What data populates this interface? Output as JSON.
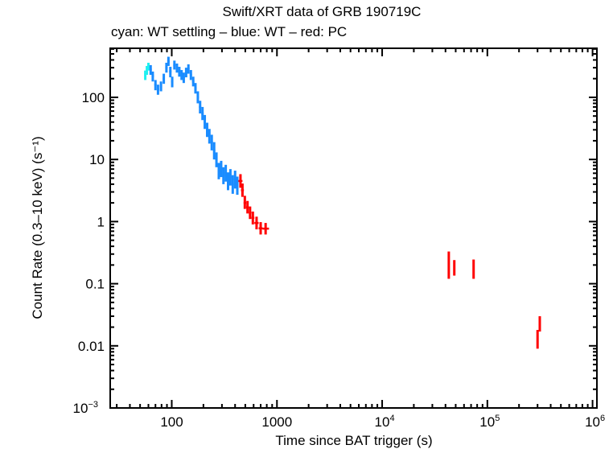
{
  "chart_data": {
    "type": "scatter",
    "title": "Swift/XRT data of GRB 190719C",
    "subtitle": "cyan: WT settling – blue: WT – red: PC",
    "xlabel": "Time since BAT trigger (s)",
    "ylabel": "Count Rate (0.3–10 keV) (s⁻¹)",
    "xscale": "log",
    "yscale": "log",
    "xlim": [
      26,
      1100000
    ],
    "ylim": [
      0.001,
      616
    ],
    "grid": false,
    "legend": "none (color key given in subtitle)",
    "x_ticks": [
      {
        "value": 100,
        "label": "100"
      },
      {
        "value": 1000,
        "label": "1000"
      },
      {
        "value": 10000,
        "label": "10",
        "exp": "4"
      },
      {
        "value": 100000,
        "label": "10",
        "exp": "5"
      },
      {
        "value": 1000000,
        "label": "10",
        "exp": "6"
      }
    ],
    "y_ticks": [
      {
        "value": 100,
        "label": "100"
      },
      {
        "value": 10,
        "label": "10"
      },
      {
        "value": 1,
        "label": "1"
      },
      {
        "value": 0.1,
        "label": "0.1"
      },
      {
        "value": 0.01,
        "label": "0.01"
      },
      {
        "value": 0.001,
        "label": "10",
        "exp": "−3"
      }
    ],
    "series": [
      {
        "name": "WT settling",
        "color": "#1ff0f0",
        "points": [
          {
            "t": 56,
            "t_lo": 55.5,
            "t_hi": 57,
            "rate": 230,
            "lo": 190,
            "hi": 270
          },
          {
            "t": 58,
            "t_lo": 57,
            "t_hi": 59,
            "rate": 270,
            "lo": 230,
            "hi": 320
          },
          {
            "t": 60,
            "t_lo": 59,
            "t_hi": 61,
            "rate": 310,
            "lo": 270,
            "hi": 360
          }
        ]
      },
      {
        "name": "WT",
        "color": "#1a8cff",
        "points": [
          {
            "t": 63,
            "rate": 280,
            "lo": 230,
            "hi": 330
          },
          {
            "t": 66,
            "rate": 220,
            "lo": 180,
            "hi": 260
          },
          {
            "t": 70,
            "rate": 160,
            "lo": 130,
            "hi": 190
          },
          {
            "t": 74,
            "rate": 135,
            "lo": 110,
            "hi": 160
          },
          {
            "t": 79,
            "rate": 150,
            "lo": 125,
            "hi": 180
          },
          {
            "t": 84,
            "rate": 200,
            "lo": 165,
            "hi": 240
          },
          {
            "t": 89,
            "rate": 300,
            "lo": 250,
            "hi": 360
          },
          {
            "t": 93,
            "rate": 380,
            "lo": 320,
            "hi": 450
          },
          {
            "t": 97,
            "rate": 260,
            "lo": 210,
            "hi": 310
          },
          {
            "t": 101,
            "rate": 180,
            "lo": 145,
            "hi": 215
          },
          {
            "t": 106,
            "rate": 330,
            "lo": 280,
            "hi": 390
          },
          {
            "t": 112,
            "rate": 300,
            "lo": 250,
            "hi": 350
          },
          {
            "t": 118,
            "rate": 260,
            "lo": 215,
            "hi": 310
          },
          {
            "t": 124,
            "rate": 230,
            "lo": 190,
            "hi": 275
          },
          {
            "t": 130,
            "rate": 210,
            "lo": 170,
            "hi": 250
          },
          {
            "t": 137,
            "rate": 250,
            "lo": 210,
            "hi": 300
          },
          {
            "t": 144,
            "rate": 290,
            "lo": 240,
            "hi": 340
          },
          {
            "t": 152,
            "rate": 230,
            "lo": 190,
            "hi": 275
          },
          {
            "t": 160,
            "rate": 180,
            "lo": 150,
            "hi": 215
          },
          {
            "t": 168,
            "rate": 140,
            "lo": 115,
            "hi": 170
          },
          {
            "t": 177,
            "rate": 100,
            "lo": 80,
            "hi": 125
          },
          {
            "t": 186,
            "rate": 70,
            "lo": 55,
            "hi": 88
          },
          {
            "t": 196,
            "rate": 55,
            "lo": 43,
            "hi": 70
          },
          {
            "t": 206,
            "rate": 40,
            "lo": 31,
            "hi": 52
          },
          {
            "t": 217,
            "rate": 30,
            "lo": 23,
            "hi": 39
          },
          {
            "t": 228,
            "rate": 24,
            "lo": 18,
            "hi": 31
          },
          {
            "t": 240,
            "rate": 19,
            "lo": 14,
            "hi": 25
          },
          {
            "t": 253,
            "rate": 14,
            "lo": 10,
            "hi": 19
          },
          {
            "t": 266,
            "rate": 10,
            "lo": 7.5,
            "hi": 13
          },
          {
            "t": 280,
            "rate": 6.5,
            "lo": 4.8,
            "hi": 8.8
          },
          {
            "t": 295,
            "rate": 7.0,
            "lo": 5.2,
            "hi": 9.5
          },
          {
            "t": 310,
            "rate": 5.5,
            "lo": 4.0,
            "hi": 7.5
          },
          {
            "t": 326,
            "rate": 6.0,
            "lo": 4.4,
            "hi": 8.2
          },
          {
            "t": 343,
            "rate": 4.5,
            "lo": 3.2,
            "hi": 6.2
          },
          {
            "t": 361,
            "rate": 5.2,
            "lo": 3.8,
            "hi": 7.0
          },
          {
            "t": 380,
            "rate": 4.0,
            "lo": 2.8,
            "hi": 5.6
          },
          {
            "t": 400,
            "rate": 4.8,
            "lo": 3.4,
            "hi": 6.6
          },
          {
            "t": 420,
            "rate": 3.8,
            "lo": 2.7,
            "hi": 5.3
          }
        ]
      },
      {
        "name": "PC",
        "color": "#ff0000",
        "points": [
          {
            "t": 450,
            "t_lo": 430,
            "t_hi": 470,
            "rate": 4.5,
            "lo": 3.5,
            "hi": 5.8
          },
          {
            "t": 470,
            "t_lo": 455,
            "t_hi": 485,
            "rate": 3.2,
            "lo": 2.5,
            "hi": 4.1
          },
          {
            "t": 495,
            "t_lo": 482,
            "t_hi": 510,
            "rate": 2.0,
            "lo": 1.6,
            "hi": 2.6
          },
          {
            "t": 525,
            "t_lo": 510,
            "t_hi": 540,
            "rate": 1.7,
            "lo": 1.35,
            "hi": 2.15
          },
          {
            "t": 555,
            "t_lo": 540,
            "t_hi": 572,
            "rate": 1.4,
            "lo": 1.1,
            "hi": 1.75
          },
          {
            "t": 590,
            "t_lo": 572,
            "t_hi": 610,
            "rate": 1.15,
            "lo": 0.9,
            "hi": 1.45
          },
          {
            "t": 640,
            "t_lo": 610,
            "t_hi": 670,
            "rate": 0.95,
            "lo": 0.75,
            "hi": 1.2
          },
          {
            "t": 700,
            "t_lo": 670,
            "t_hi": 730,
            "rate": 0.78,
            "lo": 0.62,
            "hi": 0.98
          },
          {
            "t": 780,
            "t_lo": 730,
            "t_hi": 840,
            "rate": 0.77,
            "lo": 0.62,
            "hi": 0.95
          },
          {
            "t": 43000,
            "t_lo": 42500,
            "t_hi": 43500,
            "rate": 0.2,
            "lo": 0.12,
            "hi": 0.33
          },
          {
            "t": 48500,
            "t_lo": 48000,
            "t_hi": 49000,
            "rate": 0.18,
            "lo": 0.135,
            "hi": 0.24
          },
          {
            "t": 74000,
            "t_lo": 73500,
            "t_hi": 74500,
            "rate": 0.17,
            "lo": 0.12,
            "hi": 0.245
          },
          {
            "t": 300000,
            "t_lo": 297000,
            "t_hi": 303000,
            "rate": 0.013,
            "lo": 0.009,
            "hi": 0.018
          },
          {
            "t": 315000,
            "t_lo": 312000,
            "t_hi": 318000,
            "rate": 0.022,
            "lo": 0.017,
            "hi": 0.03
          }
        ]
      }
    ]
  }
}
